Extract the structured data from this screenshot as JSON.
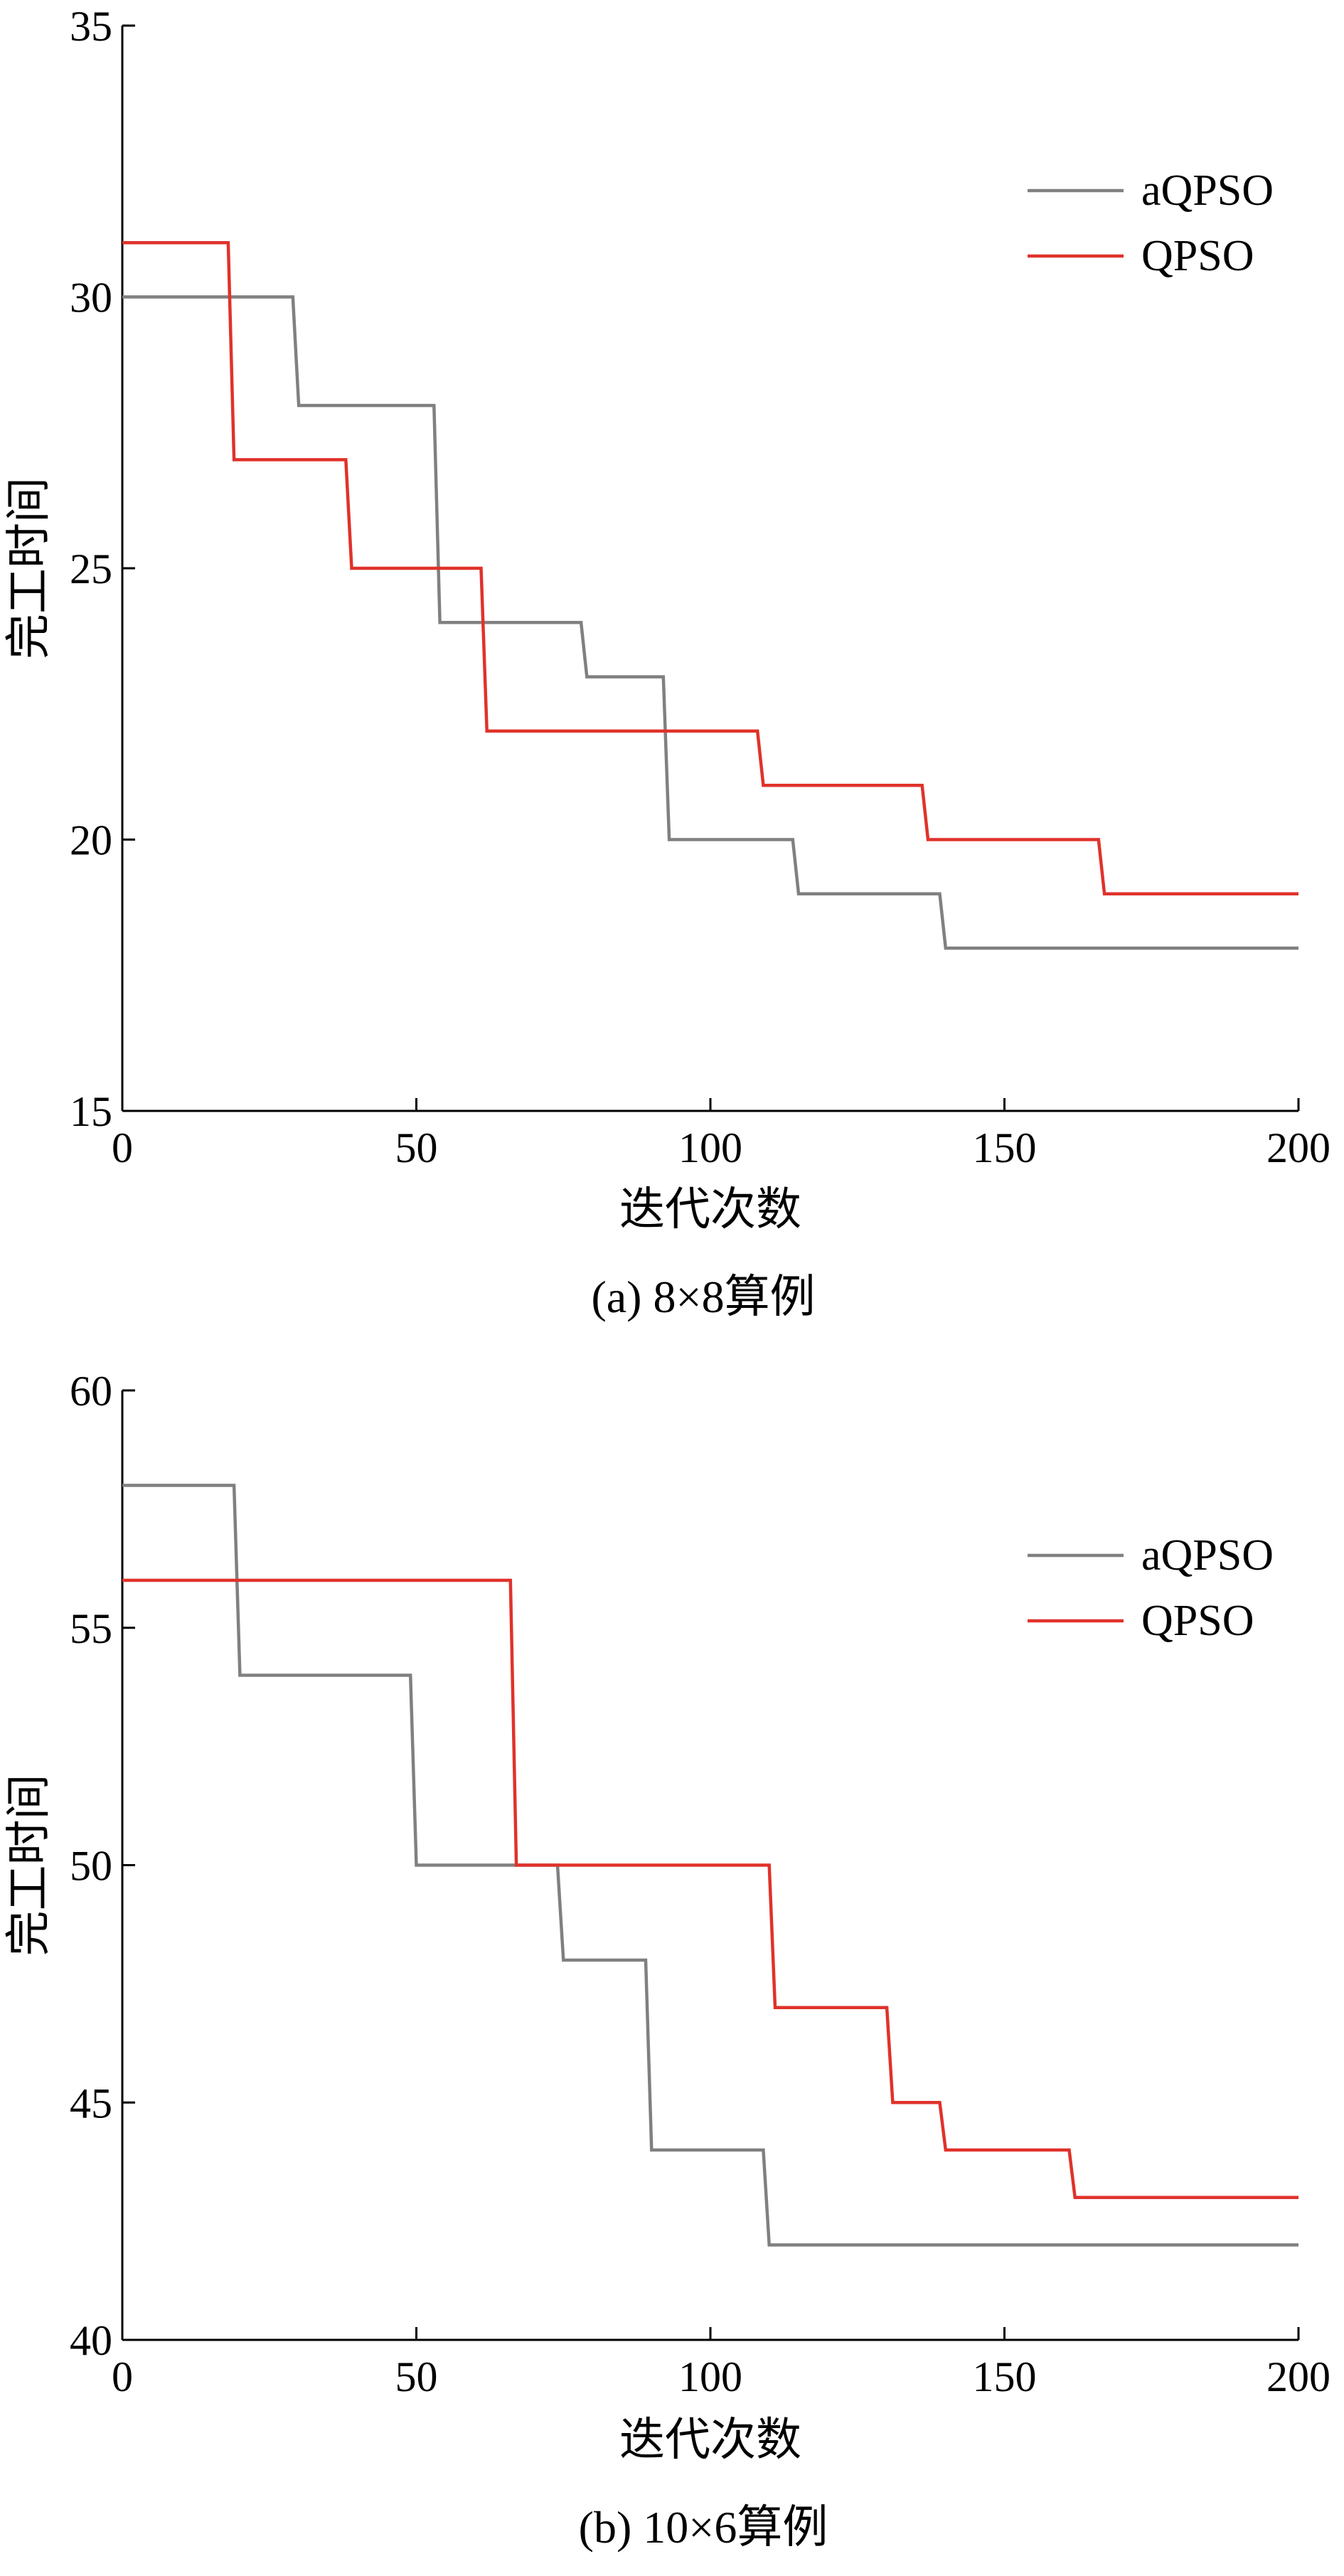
{
  "chart_data": [
    {
      "type": "line",
      "step": true,
      "caption": "(a) 8×8算例",
      "xlabel": "迭代次数",
      "ylabel": "完工时间",
      "xlim": [
        0,
        200
      ],
      "ylim": [
        15,
        35
      ],
      "xticks": [
        0,
        50,
        100,
        150,
        200
      ],
      "yticks": [
        15,
        20,
        25,
        30,
        35
      ],
      "xtick_labels": [
        "0",
        "50",
        "100",
        "150",
        "200"
      ],
      "ytick_labels": [
        "15",
        "20",
        "25",
        "30",
        "35"
      ],
      "legend_position": "top-right",
      "grid": false,
      "series": [
        {
          "name": "aQPSO",
          "color": "#808080",
          "points": [
            [
              0,
              30
            ],
            [
              29,
              30
            ],
            [
              30,
              28
            ],
            [
              53,
              28
            ],
            [
              54,
              24
            ],
            [
              78,
              24
            ],
            [
              79,
              23
            ],
            [
              92,
              23
            ],
            [
              93,
              20
            ],
            [
              114,
              20
            ],
            [
              115,
              19
            ],
            [
              139,
              19
            ],
            [
              140,
              18
            ],
            [
              200,
              18
            ]
          ]
        },
        {
          "name": "QPSO",
          "color": "#e0322b",
          "points": [
            [
              0,
              31
            ],
            [
              18,
              31
            ],
            [
              19,
              27
            ],
            [
              38,
              27
            ],
            [
              39,
              25
            ],
            [
              61,
              25
            ],
            [
              62,
              22
            ],
            [
              108,
              22
            ],
            [
              109,
              21
            ],
            [
              136,
              21
            ],
            [
              137,
              20
            ],
            [
              166,
              20
            ],
            [
              167,
              19
            ],
            [
              200,
              19
            ]
          ]
        }
      ]
    },
    {
      "type": "line",
      "step": true,
      "caption": "(b) 10×6算例",
      "xlabel": "迭代次数",
      "ylabel": "完工时间",
      "xlim": [
        0,
        200
      ],
      "ylim": [
        40,
        60
      ],
      "xticks": [
        0,
        50,
        100,
        150,
        200
      ],
      "yticks": [
        40,
        45,
        50,
        55,
        60
      ],
      "xtick_labels": [
        "0",
        "50",
        "100",
        "150",
        "200"
      ],
      "ytick_labels": [
        "40",
        "45",
        "50",
        "55",
        "60"
      ],
      "legend_position": "top-right",
      "grid": false,
      "series": [
        {
          "name": "aQPSO",
          "color": "#808080",
          "points": [
            [
              0,
              58
            ],
            [
              19,
              58
            ],
            [
              20,
              54
            ],
            [
              49,
              54
            ],
            [
              50,
              50
            ],
            [
              74,
              50
            ],
            [
              75,
              48
            ],
            [
              89,
              48
            ],
            [
              90,
              44
            ],
            [
              109,
              44
            ],
            [
              110,
              42
            ],
            [
              200,
              42
            ]
          ]
        },
        {
          "name": "QPSO",
          "color": "#e0322b",
          "points": [
            [
              0,
              56
            ],
            [
              66,
              56
            ],
            [
              67,
              50
            ],
            [
              110,
              50
            ],
            [
              111,
              47
            ],
            [
              130,
              47
            ],
            [
              131,
              45
            ],
            [
              139,
              45
            ],
            [
              140,
              44
            ],
            [
              161,
              44
            ],
            [
              162,
              43
            ],
            [
              200,
              43
            ]
          ]
        }
      ]
    }
  ]
}
